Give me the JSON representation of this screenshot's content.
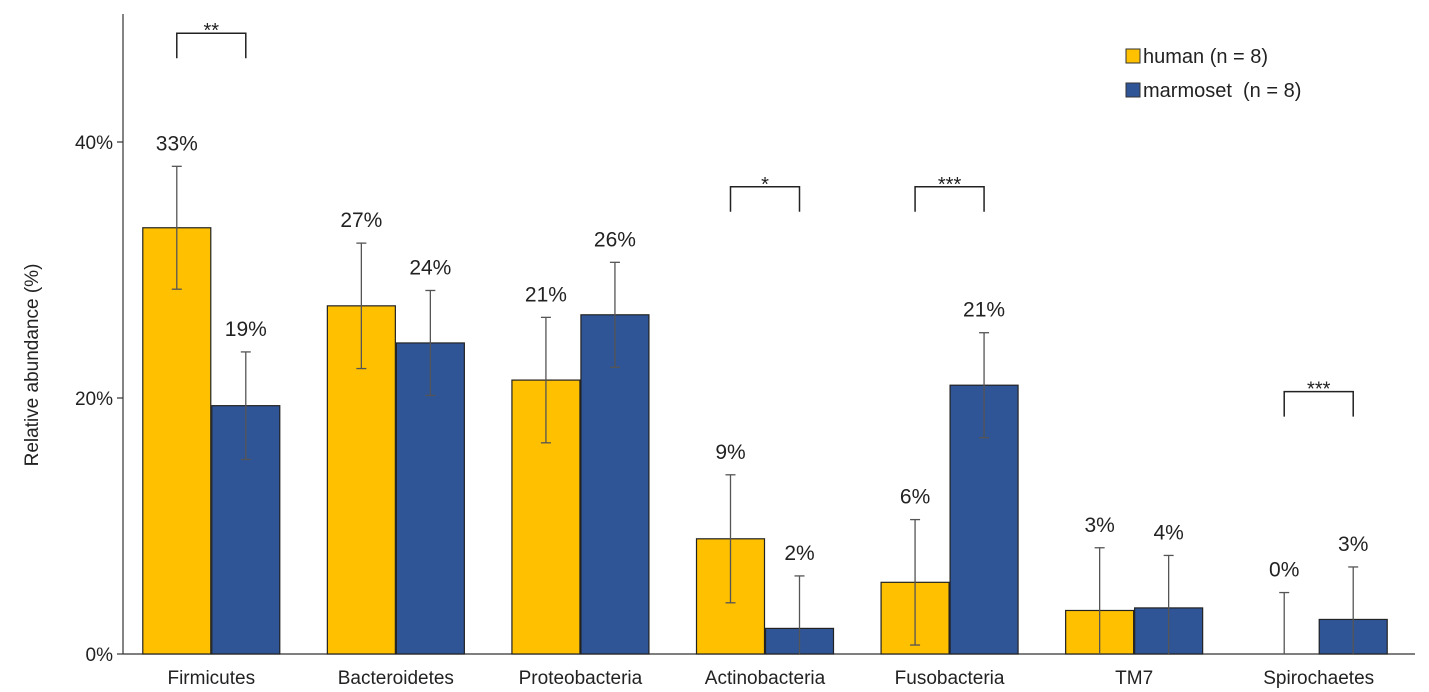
{
  "chart_data": {
    "type": "bar",
    "ylabel": "Relative abundance (%)",
    "xlabel": "",
    "title": "",
    "ylim": [
      0,
      50
    ],
    "yticks": [
      0,
      20,
      40
    ],
    "ytick_labels": [
      "0%",
      "20%",
      "40%"
    ],
    "grid": false,
    "legend_position": "top-right",
    "categories": [
      "Firmicutes",
      "Bacteroidetes",
      "Proteobacteria",
      "Actinobacteria",
      "Fusobacteria",
      "TM7",
      "Spirochaetes"
    ],
    "series": [
      {
        "name": "human (n = 8)",
        "color": "#FFC000",
        "values": [
          33.3,
          27.2,
          21.4,
          9.0,
          5.6,
          3.4,
          0.0
        ],
        "errors": [
          4.8,
          4.9,
          4.9,
          5.0,
          4.9,
          4.9,
          4.8
        ],
        "labels": [
          "33%",
          "27%",
          "21%",
          "9%",
          "6%",
          "3%",
          "0%"
        ]
      },
      {
        "name": "marmoset  (n = 8)",
        "color": "#2F5597",
        "values": [
          19.4,
          24.3,
          26.5,
          2.0,
          21.0,
          3.6,
          2.7
        ],
        "errors": [
          4.2,
          4.1,
          4.1,
          4.1,
          4.1,
          4.1,
          4.1
        ],
        "labels": [
          "19%",
          "24%",
          "26%",
          "2%",
          "21%",
          "4%",
          "3%"
        ]
      }
    ],
    "significance": [
      {
        "category": "Firmicutes",
        "label": "**",
        "y": 48.5
      },
      {
        "category": "Actinobacteria",
        "label": "*",
        "y": 36.5
      },
      {
        "category": "Fusobacteria",
        "label": "***",
        "y": 36.5
      },
      {
        "category": "Spirochaetes",
        "label": "***",
        "y": 20.5
      }
    ]
  }
}
